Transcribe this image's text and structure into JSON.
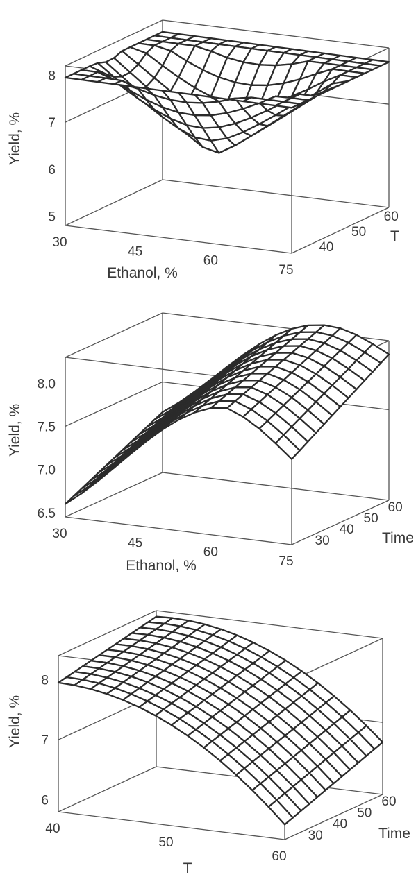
{
  "chart_data": [
    {
      "type": "surface3d",
      "zlabel": "Yield, %",
      "xlabel": "Ethanol, %",
      "ylabel": "T",
      "x_ticks": [
        "30",
        "45",
        "60",
        "75"
      ],
      "y_ticks": [
        "40",
        "50",
        "60"
      ],
      "z_ticks": [
        "5",
        "6",
        "7",
        "8"
      ],
      "x_range": [
        30,
        75
      ],
      "y_range": [
        35,
        65
      ],
      "z_range": [
        4.8,
        8.2
      ],
      "corner_values": {
        "x_min_y_min": 7.9,
        "x_max_y_min": 7.9,
        "x_min_y_max": 7.9,
        "x_max_y_max": 7.9,
        "center": 6.1
      }
    },
    {
      "type": "surface3d",
      "zlabel": "Yield, %",
      "xlabel": "Ethanol, %",
      "ylabel": "Time",
      "x_ticks": [
        "30",
        "45",
        "60",
        "75"
      ],
      "y_ticks": [
        "30",
        "40",
        "50",
        "60"
      ],
      "z_ticks": [
        "6.5",
        "7.0",
        "7.5",
        "8.0"
      ],
      "x_range": [
        30,
        75
      ],
      "y_range": [
        25,
        65
      ],
      "z_range": [
        6.45,
        8.3
      ],
      "corner_values": {
        "x_min_y_min": 6.6,
        "x_max_y_min": 7.2,
        "x_min_y_max": 7.4,
        "x_max_y_max": 7.7,
        "peak": 8.1
      }
    },
    {
      "type": "surface3d",
      "zlabel": "Yield, %",
      "xlabel": "T",
      "ylabel": "Time",
      "x_ticks": [
        "40",
        "50",
        "60"
      ],
      "y_ticks": [
        "30",
        "40",
        "50",
        "60"
      ],
      "z_ticks": [
        "6",
        "7",
        "8"
      ],
      "x_range": [
        40,
        60
      ],
      "y_range": [
        25,
        65
      ],
      "z_range": [
        5.8,
        8.4
      ],
      "corner_values": {
        "x_min_y_min": 7.9,
        "x_max_y_min": 6.0,
        "x_min_y_max": 8.3,
        "x_max_y_max": 7.3
      }
    }
  ]
}
